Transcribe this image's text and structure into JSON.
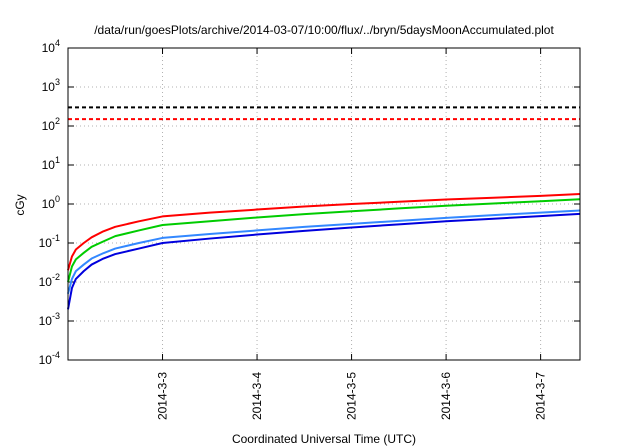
{
  "chart_data": {
    "type": "line",
    "title": "/data/run/goesPlots/archive/2014-03-07/10:00/flux/../bryn/5daysMoonAccumulated.plot",
    "xlabel": "Coordinated Universal Time (UTC)",
    "ylabel": "cGy",
    "x_unit": "days",
    "xlim": [
      "2014-03-02 00:00",
      "2014-03-07 10:00"
    ],
    "x_ticks": [
      {
        "date": "2014-03-03",
        "label": "2014-3-3"
      },
      {
        "date": "2014-03-04",
        "label": "2014-3-4"
      },
      {
        "date": "2014-03-05",
        "label": "2014-3-5"
      },
      {
        "date": "2014-03-06",
        "label": "2014-3-6"
      },
      {
        "date": "2014-03-07",
        "label": "2014-3-7"
      }
    ],
    "y_scale": "log",
    "ylim": [
      0.0001,
      10000
    ],
    "y_ticks": [
      {
        "value": 0.0001,
        "base": "10",
        "exp": "-4"
      },
      {
        "value": 0.001,
        "base": "10",
        "exp": "-3"
      },
      {
        "value": 0.01,
        "base": "10",
        "exp": "-2"
      },
      {
        "value": 0.1,
        "base": "10",
        "exp": "-1"
      },
      {
        "value": 1,
        "base": "10",
        "exp": "0"
      },
      {
        "value": 10,
        "base": "10",
        "exp": "1"
      },
      {
        "value": 100,
        "base": "10",
        "exp": "2"
      },
      {
        "value": 1000,
        "base": "10",
        "exp": "3"
      },
      {
        "value": 10000,
        "base": "10",
        "exp": "4"
      }
    ],
    "grid": true,
    "series": [
      {
        "color": "#000000",
        "dashed": true,
        "x": [
          "2014-03-02 00:00",
          "2014-03-07 10:00"
        ],
        "y": [
          300,
          300
        ]
      },
      {
        "color": "#ff0000",
        "dashed": true,
        "x": [
          "2014-03-02 00:00",
          "2014-03-07 10:00"
        ],
        "y": [
          150,
          150
        ]
      },
      {
        "color": "#ff0000",
        "dashed": false,
        "x": [
          "2014-03-02 00:00",
          "2014-03-02 01:00",
          "2014-03-02 02:00",
          "2014-03-02 04:00",
          "2014-03-02 06:00",
          "2014-03-02 09:00",
          "2014-03-02 12:00",
          "2014-03-02 18:00",
          "2014-03-03 00:00",
          "2014-03-03 12:00",
          "2014-03-04 00:00",
          "2014-03-04 12:00",
          "2014-03-05 00:00",
          "2014-03-05 12:00",
          "2014-03-06 00:00",
          "2014-03-06 12:00",
          "2014-03-07 00:00",
          "2014-03-07 10:00"
        ],
        "y": [
          0.02,
          0.045,
          0.068,
          0.1,
          0.14,
          0.2,
          0.26,
          0.36,
          0.48,
          0.6,
          0.72,
          0.86,
          1.0,
          1.14,
          1.3,
          1.45,
          1.62,
          1.8
        ]
      },
      {
        "color": "#00cc00",
        "dashed": false,
        "x": [
          "2014-03-02 00:00",
          "2014-03-02 01:00",
          "2014-03-02 02:00",
          "2014-03-02 04:00",
          "2014-03-02 06:00",
          "2014-03-02 09:00",
          "2014-03-02 12:00",
          "2014-03-02 18:00",
          "2014-03-03 00:00",
          "2014-03-03 12:00",
          "2014-03-04 00:00",
          "2014-03-04 12:00",
          "2014-03-05 00:00",
          "2014-03-05 12:00",
          "2014-03-06 00:00",
          "2014-03-06 12:00",
          "2014-03-07 00:00",
          "2014-03-07 10:00"
        ],
        "y": [
          0.01,
          0.025,
          0.038,
          0.056,
          0.08,
          0.11,
          0.15,
          0.21,
          0.29,
          0.36,
          0.45,
          0.55,
          0.65,
          0.77,
          0.9,
          1.03,
          1.18,
          1.32
        ]
      },
      {
        "color": "#3388ff",
        "dashed": false,
        "x": [
          "2014-03-02 00:00",
          "2014-03-02 01:00",
          "2014-03-02 02:00",
          "2014-03-02 04:00",
          "2014-03-02 06:00",
          "2014-03-02 09:00",
          "2014-03-02 12:00",
          "2014-03-02 18:00",
          "2014-03-03 00:00",
          "2014-03-03 12:00",
          "2014-03-04 00:00",
          "2014-03-04 12:00",
          "2014-03-05 00:00",
          "2014-03-05 12:00",
          "2014-03-06 00:00",
          "2014-03-06 12:00",
          "2014-03-07 00:00",
          "2014-03-07 10:00"
        ],
        "y": [
          0.005,
          0.012,
          0.019,
          0.028,
          0.04,
          0.055,
          0.072,
          0.1,
          0.135,
          0.17,
          0.21,
          0.26,
          0.31,
          0.37,
          0.44,
          0.52,
          0.6,
          0.68
        ]
      },
      {
        "color": "#0000dd",
        "dashed": false,
        "x": [
          "2014-03-02 00:00",
          "2014-03-02 01:00",
          "2014-03-02 02:00",
          "2014-03-02 04:00",
          "2014-03-02 06:00",
          "2014-03-02 09:00",
          "2014-03-02 12:00",
          "2014-03-02 18:00",
          "2014-03-03 00:00",
          "2014-03-03 12:00",
          "2014-03-04 00:00",
          "2014-03-04 12:00",
          "2014-03-05 00:00",
          "2014-03-05 12:00",
          "2014-03-06 00:00",
          "2014-03-06 12:00",
          "2014-03-07 00:00",
          "2014-03-07 10:00"
        ],
        "y": [
          0.002,
          0.007,
          0.012,
          0.019,
          0.028,
          0.04,
          0.052,
          0.072,
          0.1,
          0.13,
          0.165,
          0.205,
          0.25,
          0.3,
          0.36,
          0.42,
          0.49,
          0.56
        ]
      }
    ]
  }
}
